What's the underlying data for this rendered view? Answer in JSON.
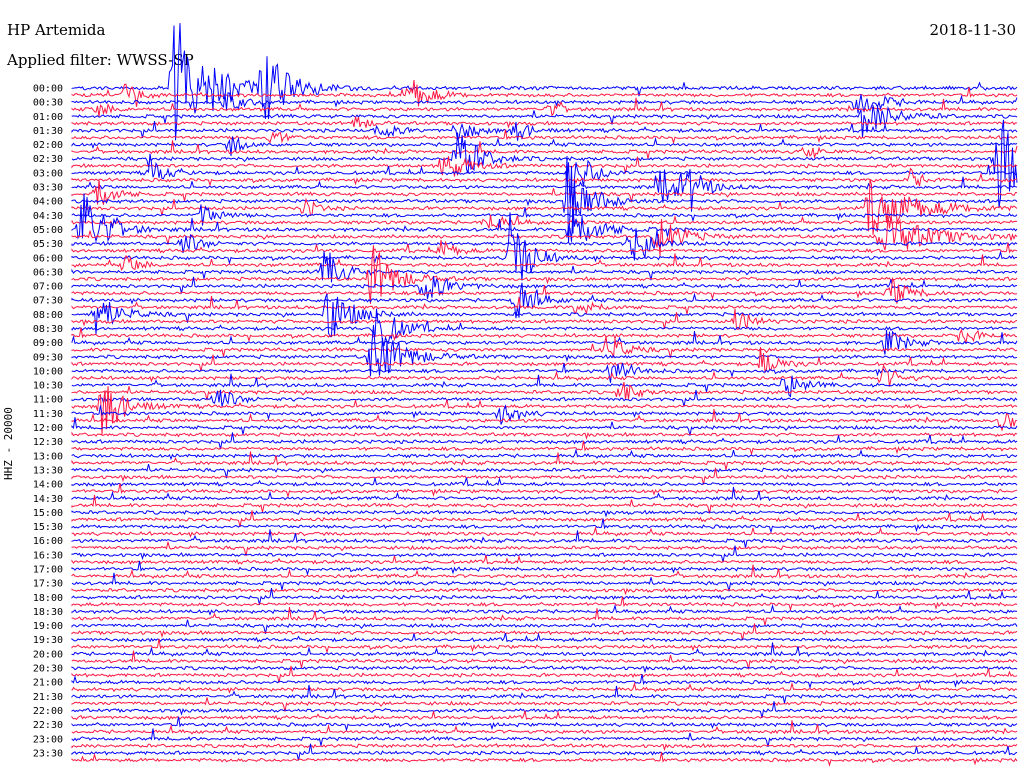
{
  "header": {
    "station": "HP Artemida",
    "date": "2018-11-30",
    "filter": "Applied filter: WWSS-SP"
  },
  "channel_label": "HHZ - 20000",
  "colors": {
    "trace_a": "#0000ff",
    "trace_b": "#ff1744",
    "background": "#ffffff",
    "text": "#000000"
  },
  "chart_data": {
    "type": "line",
    "title": "HP Artemida",
    "subtitle": "Applied filter: WWSS-SP",
    "date": "2018-11-30",
    "ylabel": "HHZ - 20000",
    "row_interval_minutes": 15,
    "tick_labels": [
      "00:00",
      "00:30",
      "01:00",
      "01:30",
      "02:00",
      "02:30",
      "03:00",
      "03:30",
      "04:00",
      "04:30",
      "05:00",
      "05:30",
      "06:00",
      "06:30",
      "07:00",
      "07:30",
      "08:00",
      "08:30",
      "09:00",
      "09:30",
      "10:00",
      "10:30",
      "11:00",
      "11:30",
      "12:00",
      "12:30",
      "13:00",
      "13:30",
      "14:00",
      "14:30",
      "15:00",
      "15:30",
      "16:00",
      "16:30",
      "17:00",
      "17:30",
      "18:00",
      "18:30",
      "19:00",
      "19:30",
      "20:00",
      "20:30",
      "21:00",
      "21:30",
      "22:00",
      "22:30",
      "23:00",
      "23:30"
    ],
    "row_count": 96,
    "row_colors_alternate": [
      "blue",
      "red"
    ],
    "grid": false
  }
}
